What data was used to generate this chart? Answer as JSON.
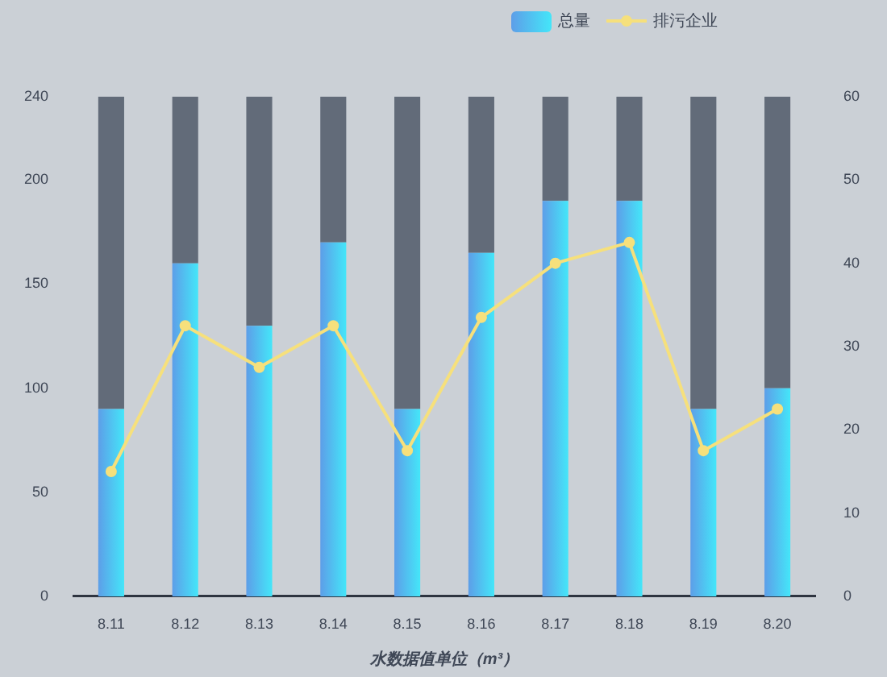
{
  "chart_data": {
    "type": "bar",
    "stacked": true,
    "categories": [
      "8.11",
      "8.12",
      "8.13",
      "8.14",
      "8.15",
      "8.16",
      "8.17",
      "8.18",
      "8.19",
      "8.20"
    ],
    "series": [
      {
        "name": "总量",
        "color": "#4cc6f1",
        "values": [
          90,
          160,
          130,
          170,
          90,
          165,
          190,
          190,
          90,
          100
        ]
      },
      {
        "color": "#626b79",
        "values": [
          150,
          80,
          110,
          70,
          150,
          75,
          50,
          50,
          150,
          140
        ]
      },
      {
        "name": "排污企业",
        "type": "line",
        "axis": "y2",
        "color": "#f6e07c",
        "values": [
          15,
          32.5,
          27.5,
          32.5,
          17.5,
          33.5,
          40,
          42.5,
          17.5,
          22.5
        ]
      }
    ],
    "ylim": [
      0,
      240
    ],
    "yticks": [
      0,
      50,
      100,
      150,
      200,
      240
    ],
    "y2lim": [
      0,
      60
    ],
    "y2ticks": [
      0,
      10,
      20,
      30,
      40,
      50,
      60
    ],
    "xlabel": "水数据值单位（m³）",
    "legend": "top right",
    "marker": "circle"
  }
}
